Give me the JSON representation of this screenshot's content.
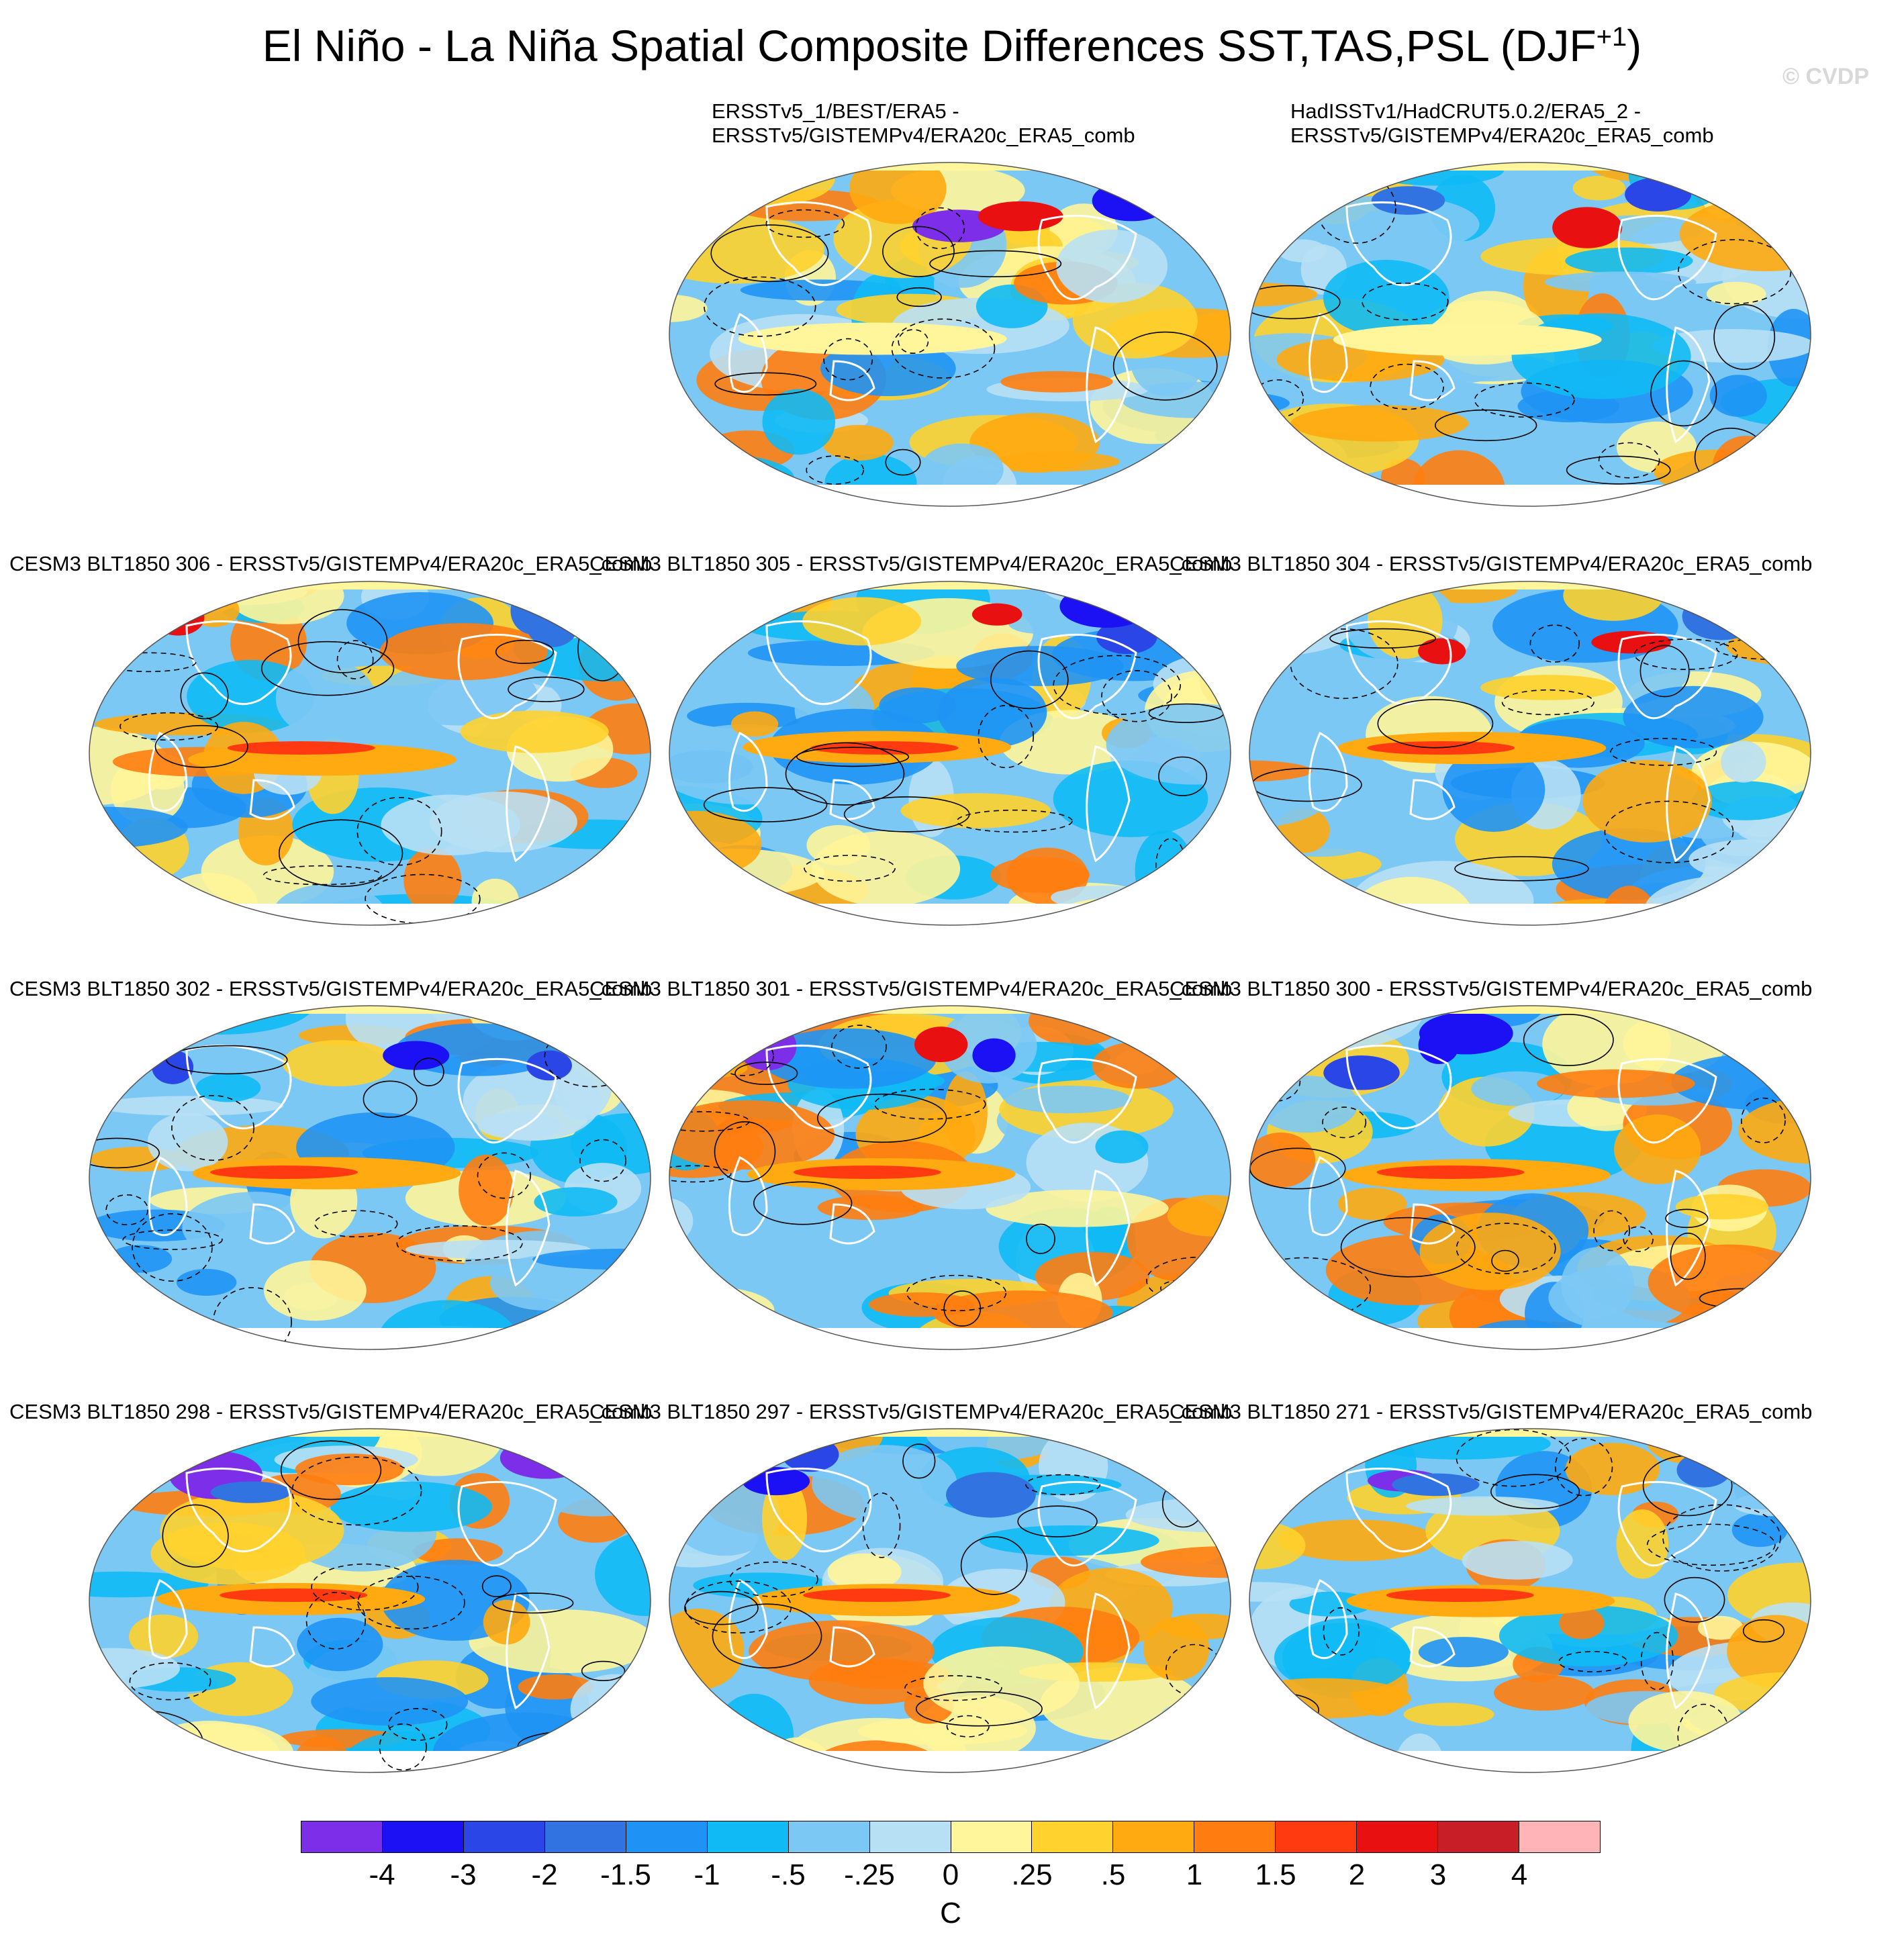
{
  "figure": {
    "title_main": "El Niño - La Niña Spatial Composite Differences SST,TAS,PSL (DJF",
    "title_sup": "+1",
    "title_end": ")",
    "watermark": "© CVDP"
  },
  "panels": [
    {
      "line1": "ERSSTv5_1/BEST/ERA5 -",
      "line2": "ERSSTv5/GISTEMPv4/ERA20c_ERA5_comb"
    },
    {
      "line1": "HadISSTv1/HadCRUT5.0.2/ERA5_2 -",
      "line2": "ERSSTv5/GISTEMPv4/ERA20c_ERA5_comb"
    },
    {
      "line1": "CESM3 BLT1850 306 - ERSSTv5/GISTEMPv4/ERA20c_ERA5_comb",
      "line2": ""
    },
    {
      "line1": "CESM3 BLT1850 305 - ERSSTv5/GISTEMPv4/ERA20c_ERA5_comb",
      "line2": ""
    },
    {
      "line1": "CESM3 BLT1850 304 - ERSSTv5/GISTEMPv4/ERA20c_ERA5_comb",
      "line2": ""
    },
    {
      "line1": "CESM3 BLT1850 302 - ERSSTv5/GISTEMPv4/ERA20c_ERA5_comb",
      "line2": ""
    },
    {
      "line1": "CESM3 BLT1850 301 - ERSSTv5/GISTEMPv4/ERA20c_ERA5_comb",
      "line2": ""
    },
    {
      "line1": "CESM3 BLT1850 300 - ERSSTv5/GISTEMPv4/ERA20c_ERA5_comb",
      "line2": ""
    },
    {
      "line1": "CESM3 BLT1850 298 - ERSSTv5/GISTEMPv4/ERA20c_ERA5_comb",
      "line2": ""
    },
    {
      "line1": "CESM3 BLT1850 297 - ERSSTv5/GISTEMPv4/ERA20c_ERA5_comb",
      "line2": ""
    },
    {
      "line1": "CESM3 BLT1850 271 - ERSSTv5/GISTEMPv4/ERA20c_ERA5_comb",
      "line2": ""
    }
  ],
  "colorbar": {
    "colors": [
      "#7d2ee8",
      "#1c10f5",
      "#2a46e6",
      "#3273e2",
      "#1f93f5",
      "#10baf5",
      "#7cc8f5",
      "#b8e0f5",
      "#fff59a",
      "#ffd22e",
      "#ffaa10",
      "#ff7d10",
      "#ff3a10",
      "#e81010",
      "#c81e28",
      "#ffb4b8"
    ],
    "labels": [
      "-4",
      "-3",
      "-2",
      "-1.5",
      "-1",
      "-.5",
      "-.25",
      "0",
      ".25",
      ".5",
      "1",
      "1.5",
      "2",
      "3",
      "4"
    ],
    "unit": "C"
  }
}
